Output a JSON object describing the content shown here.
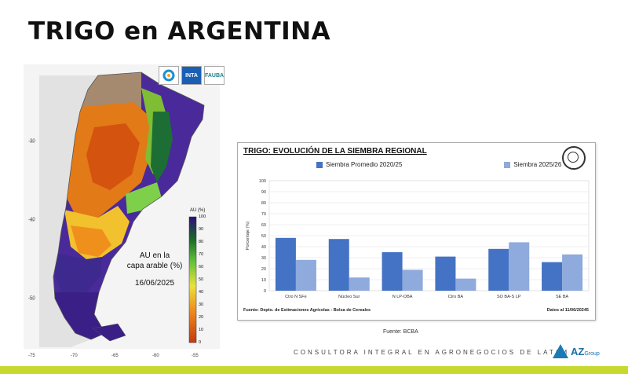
{
  "title": "TRIGO en ARGENTINA",
  "map": {
    "logos": [
      "INTA",
      "FAUBA"
    ],
    "caption_line1": "AU en la",
    "caption_line2": "capa arable (%)",
    "date": "16/06/2025",
    "colorbar_title": "AU (%)",
    "colorbar_ticks": [
      "100",
      "90",
      "80",
      "70",
      "60",
      "50",
      "40",
      "30",
      "20",
      "10",
      "0"
    ],
    "lat_labels": [
      "-30",
      "-40",
      "-50"
    ],
    "lon_labels": [
      "-75",
      "-70",
      "-65",
      "-60",
      "-55"
    ]
  },
  "chart_data": {
    "type": "bar",
    "title": "TRIGO: EVOLUCIÓN DE LA SIEMBRA REGIONAL",
    "categories": [
      "Ctro N SFe",
      "Núcleo Sur",
      "N LP-OBA",
      "Ctro BA",
      "SO BA-S LP",
      "SE BA"
    ],
    "series": [
      {
        "name": "Siembra Promedio 2020/25",
        "values": [
          48,
          47,
          35,
          31,
          38,
          26
        ],
        "color": "#4472c4"
      },
      {
        "name": "Siembra 2025/26",
        "values": [
          28,
          12,
          19,
          11,
          44,
          33
        ],
        "color": "#8faadc"
      }
    ],
    "ylabel": "Porcentaje (%)",
    "ylim": [
      0,
      100
    ],
    "yticks": [
      "100",
      "90",
      "80",
      "70",
      "60",
      "50",
      "40",
      "30",
      "20",
      "10",
      "0"
    ],
    "grid": true,
    "legend": "top",
    "footer_source": "Fuente: Depto. de Estimaciones Agrícolas - Bolsa de Cereales",
    "footer_date": "Datos al 11/06/20245"
  },
  "footer": {
    "source": "Fuente: BCBA",
    "consultora": "CONSULTORA INTEGRAL EN AGRONEGOCIOS DE LATAM",
    "brand": "AZ",
    "brand_sub": "Group"
  }
}
